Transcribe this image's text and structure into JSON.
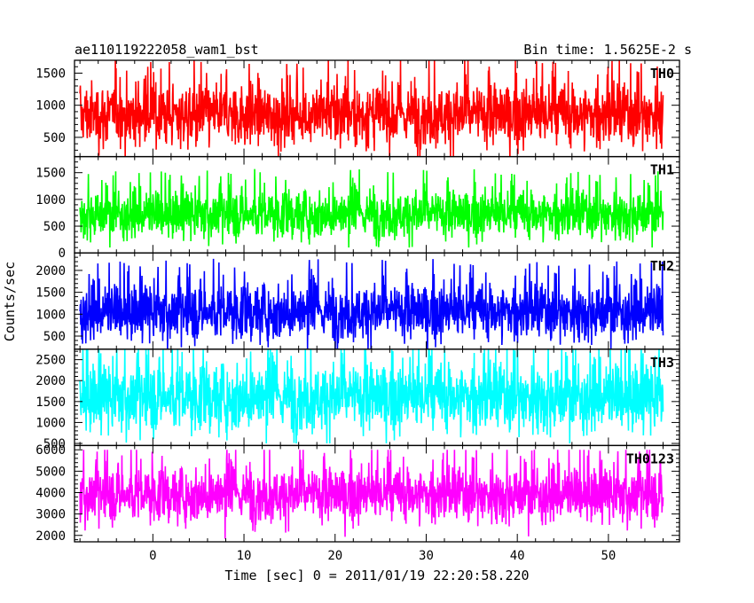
{
  "header": {
    "title": "ae110119222058_wam1_bst",
    "bin_time": "Bin time: 1.5625E-2 s"
  },
  "chart_data": {
    "type": "line",
    "title": "ae110119222058_wam1_bst",
    "subtitle": "Bin time: 1.5625E-2 s",
    "xlabel": "Time [sec] 0 = 2011/01/19 22:20:58.220",
    "ylabel": "Counts/sec",
    "xlim": [
      -8.6,
      57.8
    ],
    "x_ticks": [
      0,
      10,
      20,
      30,
      40,
      50
    ],
    "x_range_data": [
      -8.0,
      56.0
    ],
    "grid": false,
    "panels": [
      {
        "name": "TH0",
        "color": "#ff0000",
        "ylim": [
          200,
          1700
        ],
        "y_ticks": [
          500,
          1000,
          1500
        ],
        "baseline": 850,
        "spread": 250,
        "low": 150,
        "high": 1700
      },
      {
        "name": "TH1",
        "color": "#00ff00",
        "ylim": [
          0,
          1800
        ],
        "y_ticks": [
          0,
          500,
          1000,
          1500
        ],
        "baseline": 720,
        "spread": 230,
        "low": 100,
        "high": 1800
      },
      {
        "name": "TH2",
        "color": "#0000ff",
        "ylim": [
          200,
          2400
        ],
        "y_ticks": [
          500,
          1000,
          1500,
          2000
        ],
        "baseline": 1050,
        "spread": 330,
        "low": 200,
        "high": 2400
      },
      {
        "name": "TH3",
        "color": "#00ffff",
        "ylim": [
          450,
          2750
        ],
        "y_ticks": [
          500,
          1000,
          1500,
          2000,
          2500
        ],
        "baseline": 1600,
        "spread": 420,
        "low": 500,
        "high": 2750
      },
      {
        "name": "TH0123",
        "color": "#ff00ff",
        "ylim": [
          1700,
          6200
        ],
        "y_ticks": [
          2000,
          3000,
          4000,
          5000,
          6000
        ],
        "baseline": 3900,
        "spread": 650,
        "low": 1800,
        "high": 6000
      }
    ]
  }
}
